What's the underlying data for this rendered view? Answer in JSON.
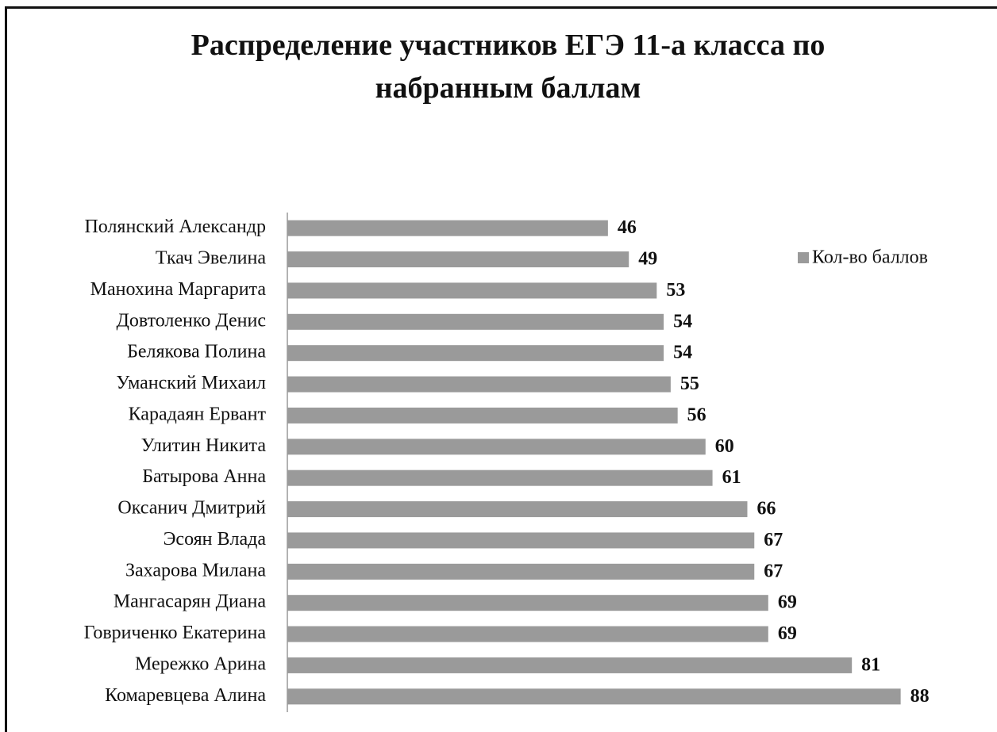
{
  "chart_data": {
    "type": "barh",
    "title": "Распределение участников ЕГЭ 11-а класса по набранным баллам",
    "categories": [
      "Полянский Александр",
      "Ткач Эвелина",
      "Манохина Маргарита",
      "Довтоленко Денис",
      "Белякова Полина",
      "Уманский Михаил",
      "Карадаян Ервант",
      "Улитин Никита",
      "Батырова Анна",
      "Оксанич Дмитрий",
      "Эсоян Влада",
      "Захарова Милана",
      "Мангасарян Диана",
      "Говриченко Екатерина",
      "Мережко Арина",
      "Комаревцева  Алина"
    ],
    "series": [
      {
        "name": "Кол-во баллов",
        "color": "#9a9a9a",
        "values": [
          46,
          49,
          53,
          54,
          54,
          55,
          56,
          60,
          61,
          66,
          67,
          67,
          69,
          69,
          81,
          88
        ]
      }
    ],
    "xlim": [
      0,
      100
    ],
    "legend": "right"
  }
}
